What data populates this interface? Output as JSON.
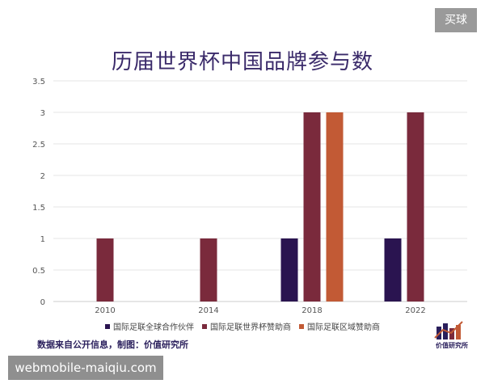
{
  "corner_badge": "买球",
  "watermark": "webmobile-maiqiu.com",
  "source_note": "数据来自公开信息，制图：价值研究所",
  "logo_text": "价值研究所",
  "colors": {
    "title": "#3a2a6a",
    "series": [
      "#2a1450",
      "#7a2a3c",
      "#c25a35"
    ]
  },
  "chart_data": {
    "type": "bar",
    "title": "历届世界杯中国品牌参与数",
    "xlabel": "",
    "ylabel": "",
    "ylim": [
      0,
      3.5
    ],
    "yticks": [
      "0",
      "0.5",
      "1",
      "1.5",
      "2",
      "2.5",
      "3",
      "3.5"
    ],
    "categories": [
      "2010",
      "2014",
      "2018",
      "2022"
    ],
    "series": [
      {
        "name": "国际足联全球合作伙伴",
        "values": [
          0,
          0,
          1,
          1
        ]
      },
      {
        "name": "国际足联世界杯赞助商",
        "values": [
          1,
          1,
          3,
          3
        ]
      },
      {
        "name": "国际足联区域赞助商",
        "values": [
          0,
          0,
          3,
          0
        ]
      }
    ],
    "grid": true,
    "legend": "bottom"
  }
}
